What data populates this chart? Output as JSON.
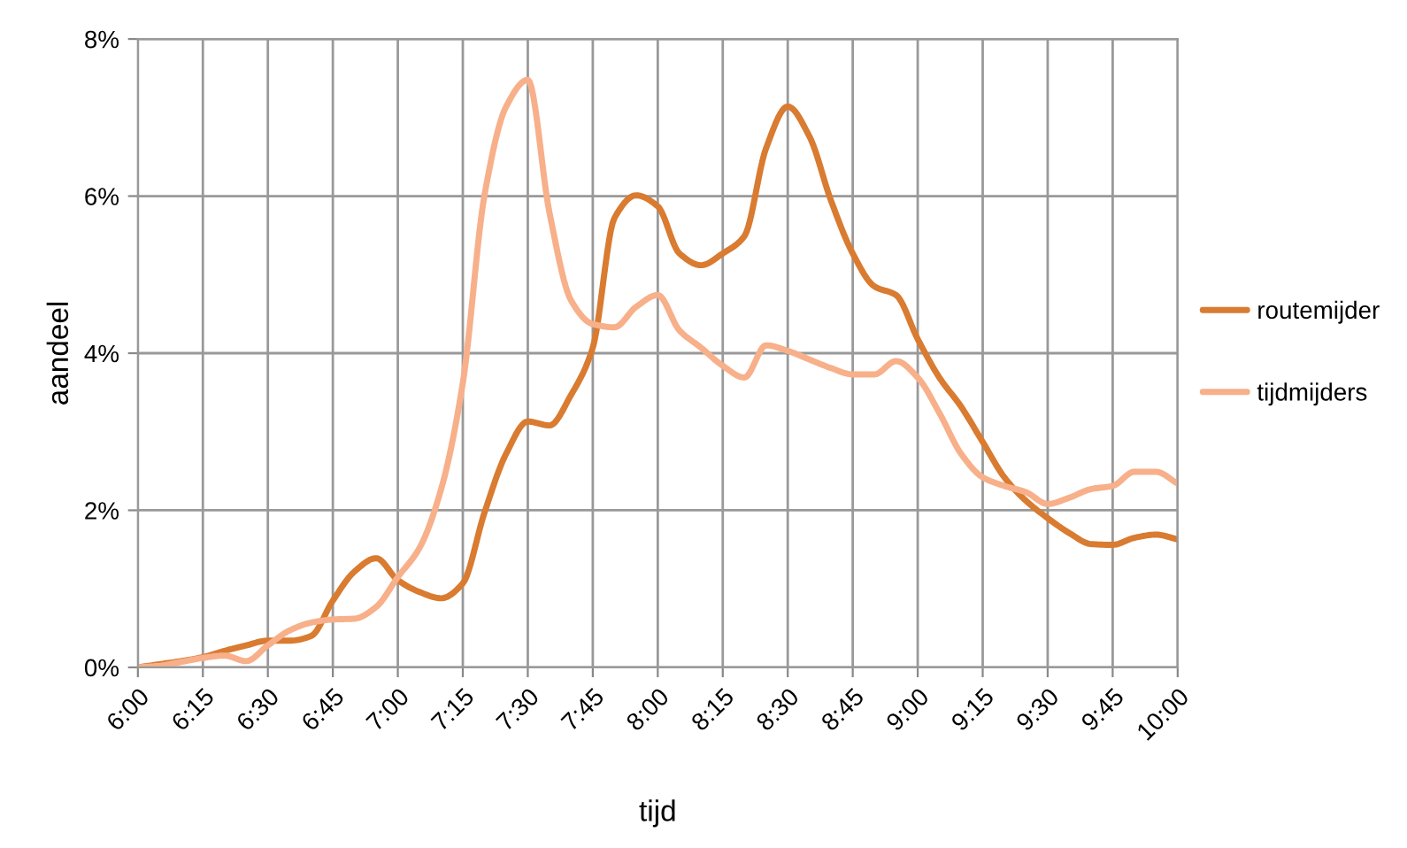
{
  "chart_data": {
    "type": "line",
    "xlabel": "tijd",
    "ylabel": "aandeel",
    "x": [
      6.0,
      6.0833,
      6.1667,
      6.25,
      6.3333,
      6.4167,
      6.5,
      6.5833,
      6.6667,
      6.75,
      6.8333,
      6.9167,
      7.0,
      7.0833,
      7.1667,
      7.25,
      7.3333,
      7.4167,
      7.5,
      7.5833,
      7.6667,
      7.75,
      7.8333,
      7.9167,
      8.0,
      8.0833,
      8.1667,
      8.25,
      8.3333,
      8.4167,
      8.5,
      8.5833,
      8.6667,
      8.75,
      8.8333,
      8.9167,
      9.0,
      9.0833,
      9.1667,
      9.25,
      9.3333,
      9.4167,
      9.5,
      9.5833,
      9.6667,
      9.75,
      9.8333,
      9.9167,
      10.0
    ],
    "series": [
      {
        "name": "routemijder",
        "color": "#d97b30",
        "values": [
          0,
          0.04,
          0.08,
          0.13,
          0.21,
          0.28,
          0.34,
          0.34,
          0.4,
          0.85,
          1.22,
          1.39,
          1.11,
          0.96,
          0.88,
          1.07,
          1.97,
          2.72,
          3.13,
          3.08,
          3.47,
          4.07,
          5.72,
          6.01,
          5.87,
          5.27,
          5.12,
          5.27,
          5.49,
          6.61,
          7.14,
          6.76,
          5.94,
          5.27,
          4.85,
          4.74,
          4.18,
          3.69,
          3.32,
          2.87,
          2.42,
          2.12,
          1.9,
          1.71,
          1.57,
          1.56,
          1.65,
          1.69,
          1.63
        ]
      },
      {
        "name": "tijdmijders",
        "color": "#f7b08a",
        "values": [
          0,
          0.02,
          0.07,
          0.12,
          0.15,
          0.08,
          0.28,
          0.47,
          0.57,
          0.61,
          0.62,
          0.77,
          1.15,
          1.52,
          2.27,
          3.62,
          6.01,
          7.14,
          7.48,
          5.79,
          4.67,
          4.37,
          4.33,
          4.59,
          4.74,
          4.29,
          4.07,
          3.84,
          3.69,
          4.1,
          4.03,
          3.92,
          3.81,
          3.73,
          3.73,
          3.9,
          3.69,
          3.24,
          2.72,
          2.42,
          2.31,
          2.23,
          2.08,
          2.16,
          2.27,
          2.31,
          2.49,
          2.49,
          2.34
        ]
      }
    ],
    "xlim": [
      6,
      10
    ],
    "xticks": [
      {
        "value": 6,
        "label": "6:00"
      },
      {
        "value": 6.25,
        "label": "6:15"
      },
      {
        "value": 6.5,
        "label": "6:30"
      },
      {
        "value": 6.75,
        "label": "6:45"
      },
      {
        "value": 7,
        "label": "7:00"
      },
      {
        "value": 7.25,
        "label": "7:15"
      },
      {
        "value": 7.5,
        "label": "7:30"
      },
      {
        "value": 7.75,
        "label": "7:45"
      },
      {
        "value": 8,
        "label": "8:00"
      },
      {
        "value": 8.25,
        "label": "8:15"
      },
      {
        "value": 8.5,
        "label": "8:30"
      },
      {
        "value": 8.75,
        "label": "8:45"
      },
      {
        "value": 9,
        "label": "9:00"
      },
      {
        "value": 9.25,
        "label": "9:15"
      },
      {
        "value": 9.5,
        "label": "9:30"
      },
      {
        "value": 9.75,
        "label": "9:45"
      },
      {
        "value": 10,
        "label": "10:00"
      }
    ],
    "ylim": [
      0,
      8
    ],
    "yticks": [
      {
        "value": 0,
        "label": "0%"
      },
      {
        "value": 2,
        "label": "2%"
      },
      {
        "value": 4,
        "label": "4%"
      },
      {
        "value": 6,
        "label": "6%"
      },
      {
        "value": 8,
        "label": "8%"
      }
    ],
    "grid": true,
    "legend": "right",
    "marker": "none",
    "line_style": "solid"
  }
}
